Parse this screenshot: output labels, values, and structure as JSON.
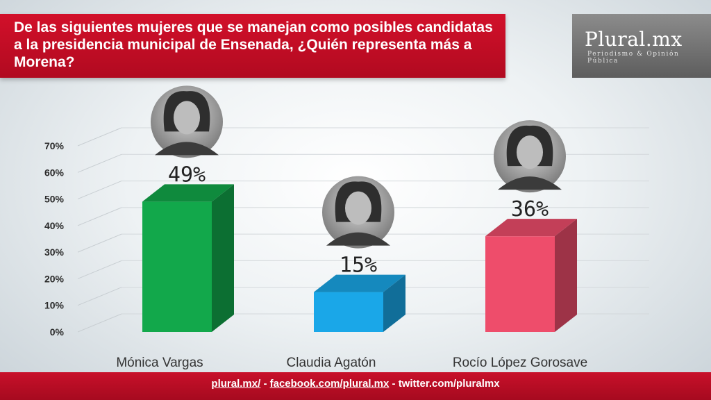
{
  "header": {
    "title": "De las siguientes mujeres que se manejan como posibles candidatas a la presidencia municipal de Ensenada, ¿Quién representa más a Morena?"
  },
  "logo": {
    "name": "Plural.mx",
    "tagline": "Periodismo & Opinión Pública"
  },
  "colors": {
    "header_red": "#c8102a",
    "bar_green": "#12a84b",
    "bar_blue": "#1aa7e8",
    "bar_pink": "#ee4d6b"
  },
  "chart_data": {
    "type": "bar",
    "title": "De las siguientes mujeres que se manejan como posibles candidatas a la presidencia municipal de Ensenada, ¿Quién representa más a Morena?",
    "categories": [
      "Mónica Vargas",
      "Claudia Agatón",
      "Rocío López Gorosave"
    ],
    "values": [
      49,
      15,
      36
    ],
    "value_labels": [
      "49%",
      "15%",
      "36%"
    ],
    "colors": [
      "#12a84b",
      "#1aa7e8",
      "#ee4d6b"
    ],
    "ylim": [
      0,
      70
    ],
    "yticks": [
      0,
      10,
      20,
      30,
      40,
      50,
      60,
      70
    ],
    "ytick_labels": [
      "0%",
      "10%",
      "20%",
      "30%",
      "40%",
      "50%",
      "60%",
      "70%"
    ],
    "xlabel": "",
    "ylabel": "",
    "grid": true,
    "style": "3d-bars-with-portraits"
  },
  "footer": {
    "link1": "plural.mx/",
    "sep1": " - ",
    "link2": "facebook.com/plural.mx",
    "sep2": " - ",
    "text3": "twitter.com/pluralmx"
  }
}
